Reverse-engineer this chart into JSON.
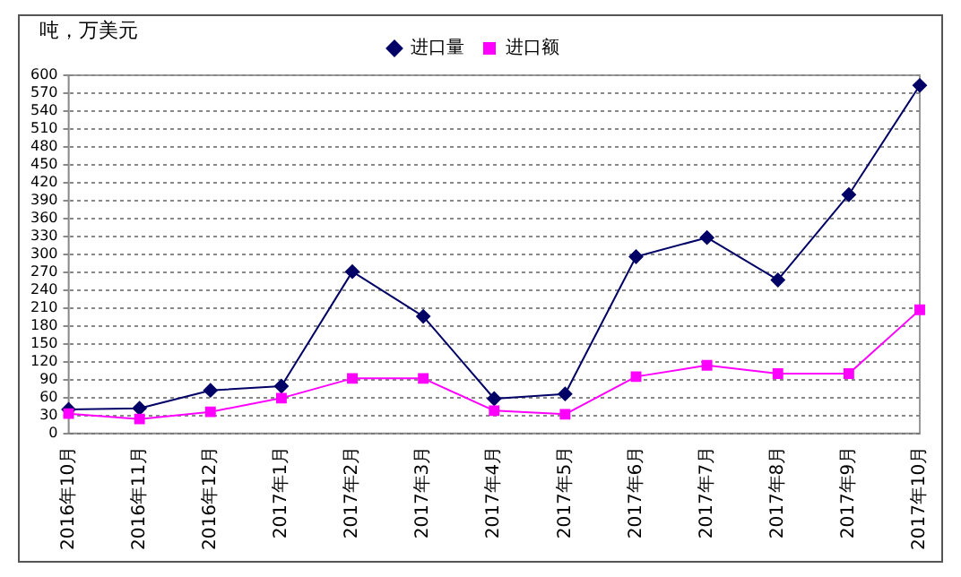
{
  "chart_data": {
    "type": "line",
    "ylabel": "吨，万美元",
    "categories": [
      "2016年10月",
      "2016年11月",
      "2016年12月",
      "2017年1月",
      "2017年2月",
      "2017年3月",
      "2017年4月",
      "2017年5月",
      "2017年6月",
      "2017年7月",
      "2017年8月",
      "2017年9月",
      "2017年10月"
    ],
    "series": [
      {
        "name": "进口量",
        "color": "#000066",
        "marker": "diamond",
        "values": [
          40,
          42,
          72,
          79,
          271,
          196,
          58,
          66,
          296,
          328,
          257,
          400,
          583
        ]
      },
      {
        "name": "进口额",
        "color": "#ff00ff",
        "marker": "square",
        "values": [
          33,
          24,
          36,
          59,
          92,
          92,
          38,
          32,
          95,
          114,
          100,
          100,
          207
        ]
      }
    ],
    "ylim": [
      0,
      600
    ],
    "yticks": [
      0,
      30,
      60,
      90,
      120,
      150,
      180,
      210,
      240,
      270,
      300,
      330,
      360,
      390,
      420,
      450,
      480,
      510,
      540,
      570,
      600
    ],
    "grid": "y",
    "legend": "top",
    "line_style": "solid"
  }
}
